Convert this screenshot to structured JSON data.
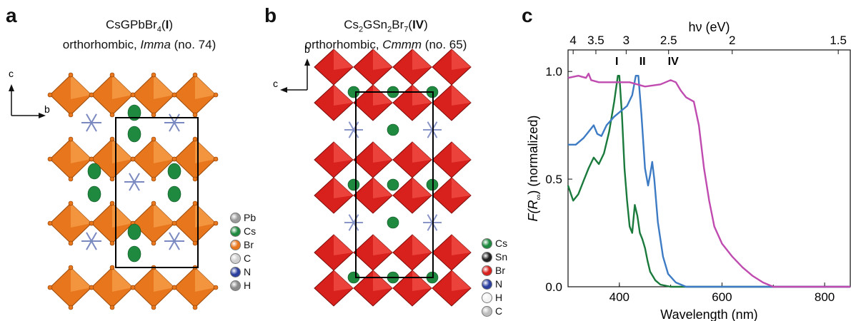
{
  "panels": {
    "a": {
      "letter": "a",
      "formula_pre": "CsGPbBr",
      "formula_sub": "4",
      "formula_paren_open": "(",
      "formula_label": "I",
      "formula_paren_close": ")",
      "subtitle_pre": "orthorhombic, ",
      "subtitle_group": "Imma",
      "subtitle_post": " (no. 74)",
      "axis_vertical": "c",
      "axis_horizontal": "b",
      "legend": [
        {
          "label": "Pb",
          "color": "#9a9a9a"
        },
        {
          "label": "Cs",
          "color": "#1f8a3f"
        },
        {
          "label": "Br",
          "color": "#e8761c"
        },
        {
          "label": "C",
          "color": "#cfcfcf"
        },
        {
          "label": "N",
          "color": "#2a3f9e"
        },
        {
          "label": "H",
          "color": "#8a8a8a"
        }
      ]
    },
    "b": {
      "letter": "b",
      "f1": "Cs",
      "f1_sub": "2",
      "f2": "GSn",
      "f2_sub": "2",
      "f3": "Br",
      "f3_sub": "7",
      "formula_paren_open": "(",
      "formula_label": "IV",
      "formula_paren_close": ")",
      "subtitle_pre": "orthorhombic, ",
      "subtitle_group": "Cmmm",
      "subtitle_post": " (no. 65)",
      "axis_vertical": "b",
      "axis_horizontal": "c",
      "legend": [
        {
          "label": "Cs",
          "color": "#1f8a3f"
        },
        {
          "label": "Sn",
          "color": "#222222"
        },
        {
          "label": "Br",
          "color": "#d8201c"
        },
        {
          "label": "N",
          "color": "#2a3f9e"
        },
        {
          "label": "H",
          "color": "#f2f2f2"
        },
        {
          "label": "C",
          "color": "#bdbdbd"
        }
      ]
    },
    "c": {
      "letter": "c"
    }
  },
  "chart_data": {
    "type": "line",
    "xlabel": "Wavelength (nm)",
    "ylabel_pre": "F(R",
    "ylabel_sub": "∞",
    "ylabel_post": ") (normalized)",
    "top_axis_label": "hν (eV)",
    "xlim": [
      300,
      850
    ],
    "ylim": [
      0.0,
      1.1
    ],
    "x_ticks": [
      400,
      600,
      800
    ],
    "y_ticks": [
      0.0,
      0.5,
      1.0
    ],
    "y_tick_labels": [
      "0.0",
      "0.5",
      "1.0"
    ],
    "top_ticks_ev": [
      4,
      3.5,
      3,
      2.5,
      2,
      1.5
    ],
    "top_tick_labels": [
      "4",
      "3.5",
      "3",
      "2.5",
      "2",
      "1.5"
    ],
    "annotations": [
      {
        "text": "I",
        "x": 395,
        "y": 1.03
      },
      {
        "text": "II",
        "x": 445,
        "y": 1.03
      },
      {
        "text": "IV",
        "x": 505,
        "y": 1.03
      }
    ],
    "series": [
      {
        "label": "I",
        "color": "#1a7a3c",
        "points": [
          [
            300,
            0.47
          ],
          [
            310,
            0.4
          ],
          [
            320,
            0.43
          ],
          [
            330,
            0.49
          ],
          [
            340,
            0.55
          ],
          [
            350,
            0.6
          ],
          [
            360,
            0.57
          ],
          [
            370,
            0.62
          ],
          [
            380,
            0.72
          ],
          [
            390,
            0.86
          ],
          [
            397,
            0.98
          ],
          [
            400,
            0.98
          ],
          [
            405,
            0.8
          ],
          [
            410,
            0.55
          ],
          [
            415,
            0.4
          ],
          [
            420,
            0.28
          ],
          [
            425,
            0.25
          ],
          [
            430,
            0.38
          ],
          [
            435,
            0.33
          ],
          [
            440,
            0.25
          ],
          [
            445,
            0.22
          ],
          [
            450,
            0.18
          ],
          [
            455,
            0.12
          ],
          [
            460,
            0.07
          ],
          [
            470,
            0.03
          ],
          [
            480,
            0.01
          ],
          [
            500,
            0.0
          ],
          [
            850,
            0.0
          ]
        ]
      },
      {
        "label": "II",
        "color": "#3d7bc4",
        "points": [
          [
            300,
            0.66
          ],
          [
            315,
            0.66
          ],
          [
            330,
            0.69
          ],
          [
            340,
            0.72
          ],
          [
            350,
            0.75
          ],
          [
            357,
            0.71
          ],
          [
            365,
            0.7
          ],
          [
            375,
            0.75
          ],
          [
            390,
            0.79
          ],
          [
            405,
            0.82
          ],
          [
            415,
            0.84
          ],
          [
            425,
            0.89
          ],
          [
            432,
            0.98
          ],
          [
            437,
            0.98
          ],
          [
            443,
            0.8
          ],
          [
            450,
            0.55
          ],
          [
            456,
            0.47
          ],
          [
            460,
            0.52
          ],
          [
            464,
            0.58
          ],
          [
            468,
            0.5
          ],
          [
            475,
            0.3
          ],
          [
            485,
            0.14
          ],
          [
            495,
            0.06
          ],
          [
            510,
            0.02
          ],
          [
            530,
            0.0
          ],
          [
            850,
            0.0
          ]
        ]
      },
      {
        "label": "IV",
        "color": "#c04bb0",
        "points": [
          [
            300,
            0.97
          ],
          [
            320,
            0.98
          ],
          [
            335,
            0.97
          ],
          [
            340,
            0.99
          ],
          [
            345,
            0.96
          ],
          [
            360,
            0.95
          ],
          [
            390,
            0.95
          ],
          [
            420,
            0.95
          ],
          [
            450,
            0.93
          ],
          [
            480,
            0.94
          ],
          [
            500,
            0.96
          ],
          [
            510,
            0.95
          ],
          [
            520,
            0.91
          ],
          [
            530,
            0.88
          ],
          [
            545,
            0.86
          ],
          [
            555,
            0.75
          ],
          [
            565,
            0.55
          ],
          [
            575,
            0.4
          ],
          [
            585,
            0.28
          ],
          [
            600,
            0.2
          ],
          [
            620,
            0.14
          ],
          [
            640,
            0.09
          ],
          [
            660,
            0.05
          ],
          [
            680,
            0.02
          ],
          [
            700,
            0.0
          ],
          [
            850,
            0.0
          ]
        ]
      }
    ]
  }
}
